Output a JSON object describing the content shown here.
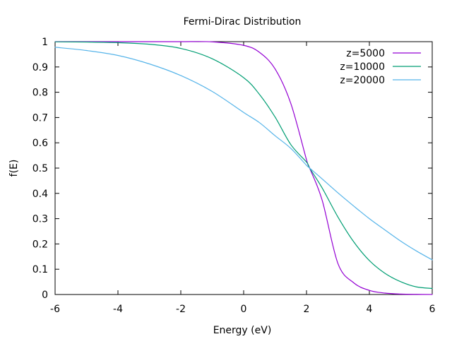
{
  "chart_data": {
    "type": "line",
    "title": "Fermi-Dirac Distribution",
    "xlabel": "Energy (eV)",
    "ylabel": "f(E)",
    "xlim": [
      -6,
      6
    ],
    "ylim": [
      0,
      1
    ],
    "x_ticks": [
      -6,
      -4,
      -2,
      0,
      2,
      4,
      6
    ],
    "y_ticks": [
      0,
      0.1,
      0.2,
      0.3,
      0.4,
      0.5,
      0.6,
      0.7,
      0.8,
      0.9,
      1
    ],
    "x_tick_labels": [
      "-6",
      "-4",
      "-2",
      "0",
      "2",
      "4",
      "6"
    ],
    "y_tick_labels": [
      "0",
      "0.1",
      "0.2",
      "0.3",
      "0.4",
      "0.5",
      "0.6",
      "0.7",
      "0.8",
      "0.9",
      "1"
    ],
    "grid": false,
    "legend_position": "top-right",
    "x": [
      -6,
      -5,
      -4,
      -3,
      -2,
      -1,
      0,
      0.5,
      1,
      1.5,
      2,
      2.1,
      2.5,
      3,
      3.5,
      4,
      4.5,
      5,
      5.5,
      6
    ],
    "series": [
      {
        "name": "z=5000",
        "color": "#9400d3",
        "values": [
          1.0,
          1.0,
          1.0,
          1.0,
          1.0,
          0.9993,
          0.9854,
          0.958,
          0.8922,
          0.7558,
          0.5328,
          0.5,
          0.372,
          0.1224,
          0.0464,
          0.0163,
          0.0055,
          0.0018,
          0.0006,
          0.0002
        ]
      },
      {
        "name": "z=10000",
        "color": "#009e73",
        "values": [
          0.9995,
          0.9985,
          0.9961,
          0.9898,
          0.9733,
          0.9324,
          0.8576,
          0.7919,
          0.702,
          0.5931,
          0.5238,
          0.5,
          0.4209,
          0.3065,
          0.2088,
          0.1342,
          0.0836,
          0.0505,
          0.03,
          0.024
        ]
      },
      {
        "name": "z=20000",
        "color": "#56b4e9",
        "values": [
          0.978,
          0.965,
          0.9455,
          0.912,
          0.866,
          0.803,
          0.72,
          0.68,
          0.628,
          0.578,
          0.511,
          0.5,
          0.457,
          0.402,
          0.35,
          0.3,
          0.255,
          0.211,
          0.172,
          0.137
        ]
      }
    ]
  }
}
